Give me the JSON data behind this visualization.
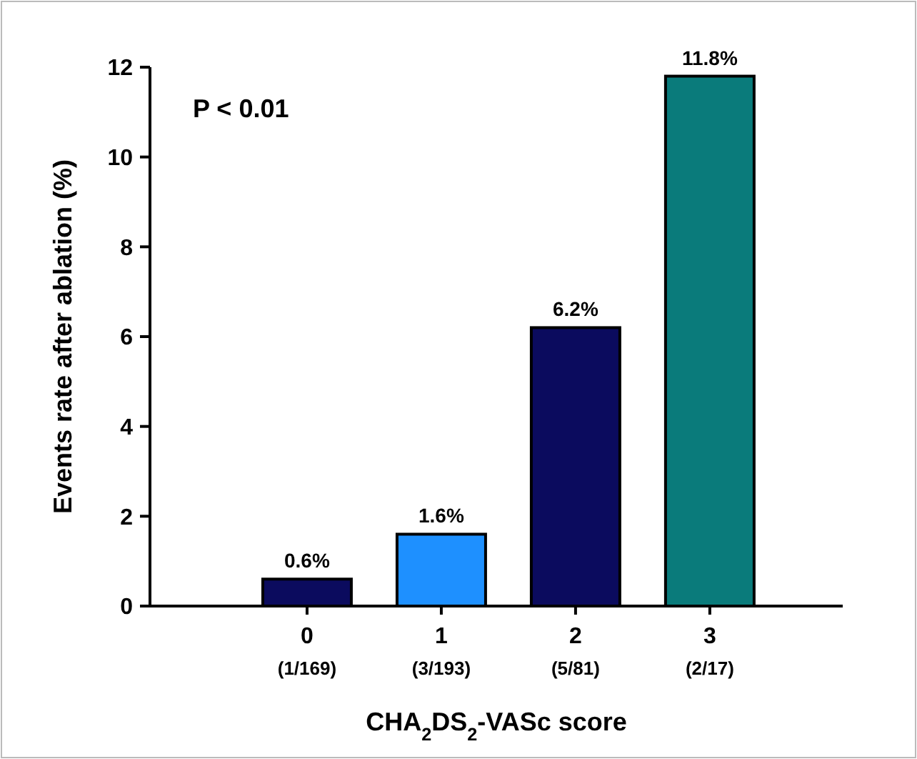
{
  "chart_data": {
    "type": "bar",
    "xlabel": "CHA$_{2}$DS$_{2}$-VASc score",
    "ylabel": "Events rate after ablation (%)",
    "categories": [
      "0\n(1/169)",
      "1\n(3/193)",
      "2\n(5/81)",
      "3\n(2/17)"
    ],
    "values": [
      0.6,
      1.6,
      6.2,
      11.8
    ],
    "colors": [
      "#0b0b5e",
      "#1e90ff",
      "#0b0b5e",
      "#0a7b7b"
    ],
    "value_labels": [
      "0.6%",
      "1.6%",
      "6.2%",
      "11.8%"
    ],
    "ylim": [
      0,
      12
    ],
    "yticks": [
      0,
      2,
      4,
      6,
      8,
      10,
      12
    ],
    "annotations": [
      "P < 0.01"
    ],
    "grid": false
  }
}
